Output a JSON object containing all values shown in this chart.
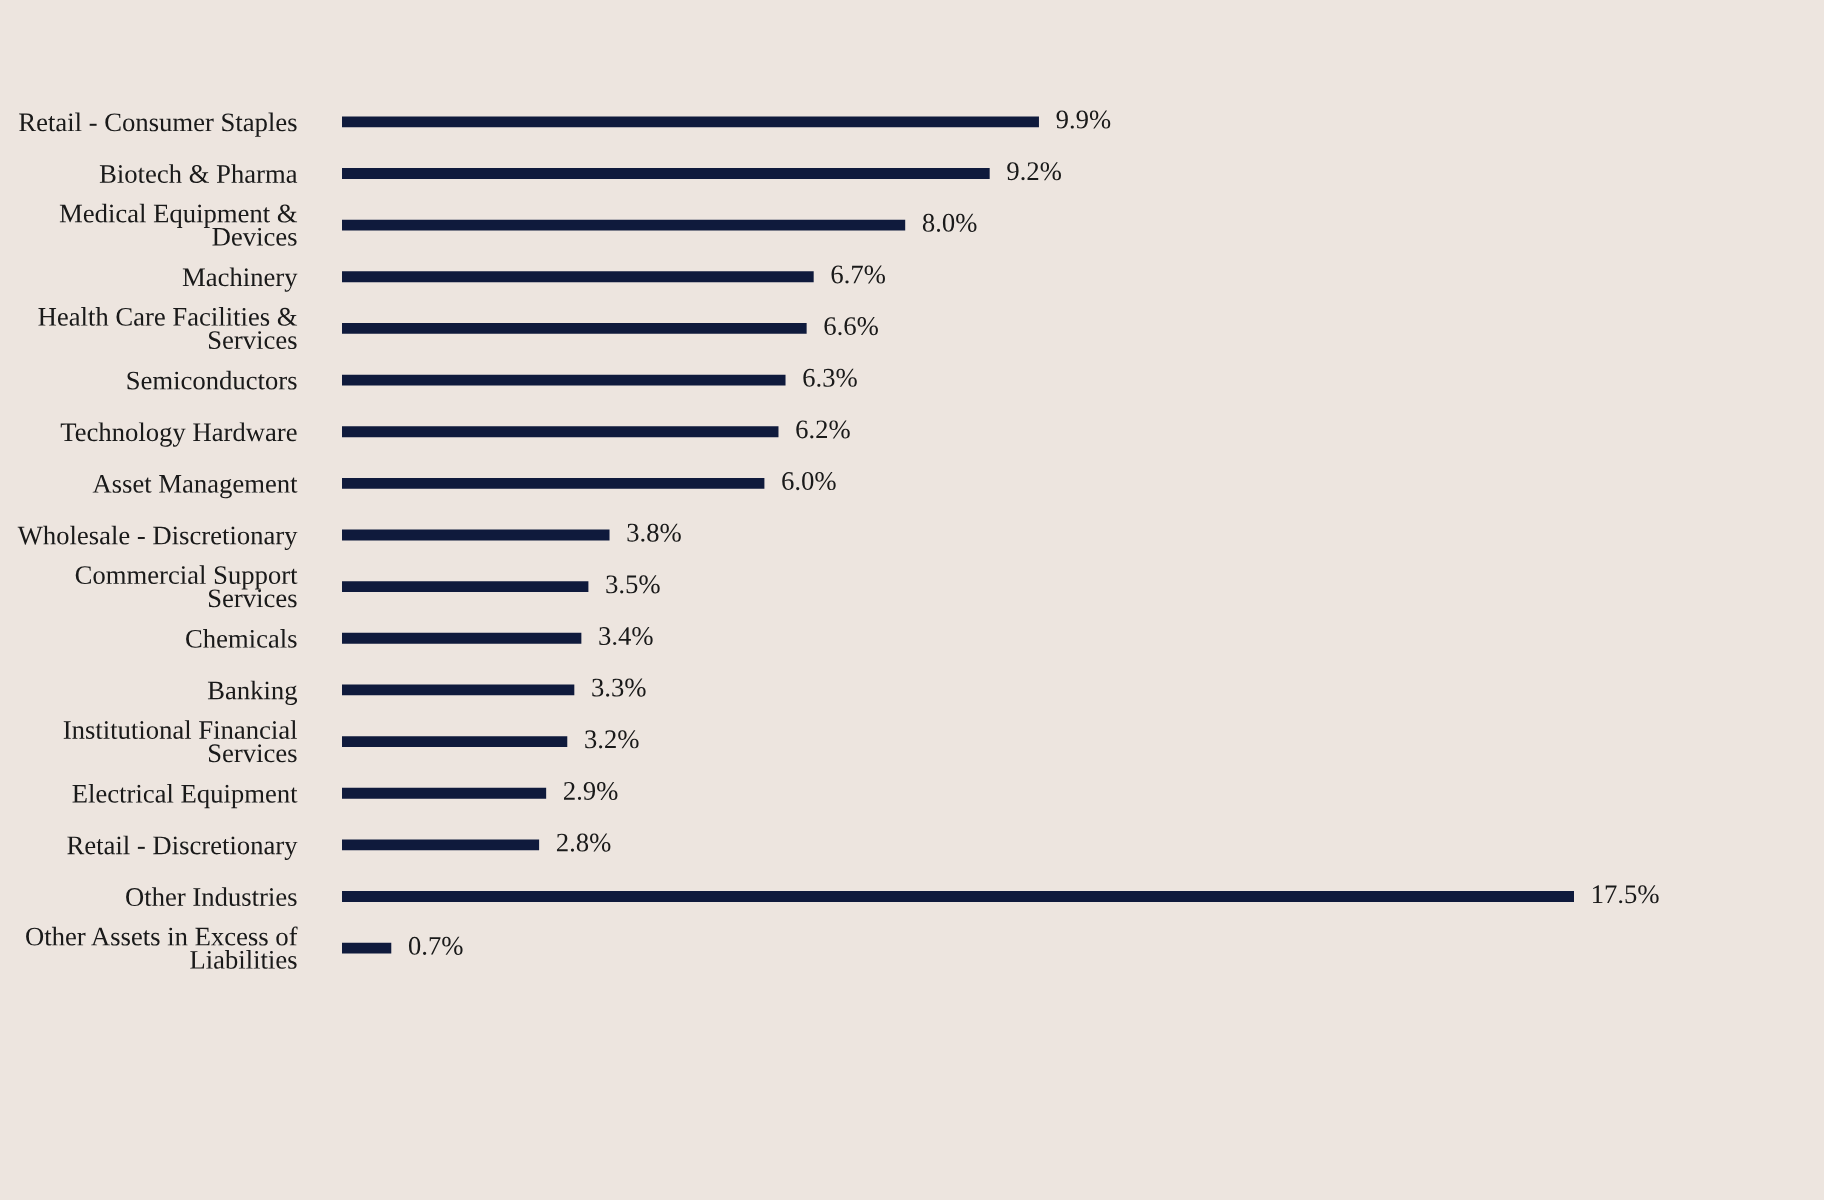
{
  "chart_data": {
    "type": "bar",
    "orientation": "horizontal",
    "categories": [
      "Retail - Consumer Staples",
      "Biotech & Pharma",
      "Medical Equipment &\nDevices",
      "Machinery",
      "Health Care Facilities &\nServices",
      "Semiconductors",
      "Technology Hardware",
      "Asset Management",
      "Wholesale - Discretionary",
      "Commercial Support\nServices",
      "Chemicals",
      "Banking",
      "Institutional Financial\nServices",
      "Electrical Equipment",
      "Retail - Discretionary",
      "Other Industries",
      "Other Assets in Excess of\nLiabilities"
    ],
    "values": [
      9.9,
      9.2,
      8.0,
      6.7,
      6.6,
      6.3,
      6.2,
      6.0,
      3.8,
      3.5,
      3.4,
      3.3,
      3.2,
      2.9,
      2.8,
      17.5,
      0.7
    ],
    "value_labels": [
      "9.9%",
      "9.2%",
      "8.0%",
      "6.7%",
      "6.6%",
      "6.3%",
      "6.2%",
      "6.0%",
      "3.8%",
      "3.5%",
      "3.4%",
      "3.3%",
      "3.2%",
      "2.9%",
      "2.8%",
      "17.5%",
      "0.7%"
    ],
    "color": "#0f1a3c",
    "tick_labels": "y"
  }
}
